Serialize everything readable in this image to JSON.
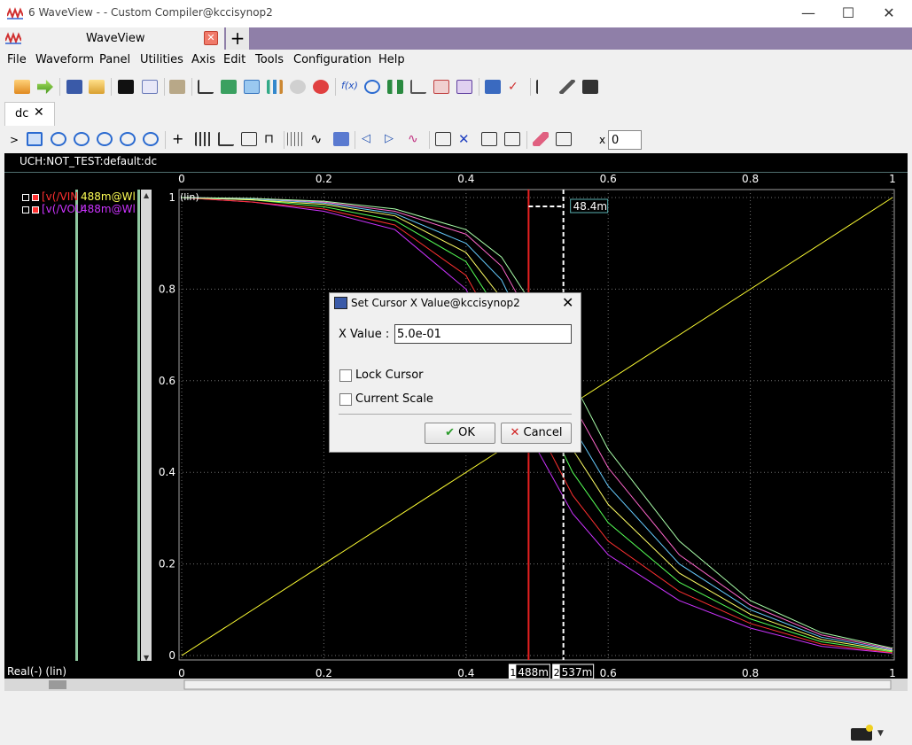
{
  "window": {
    "title": "6 WaveView -  - Custom Compiler@kccisynop2",
    "minimize": "—",
    "maximize": "☐",
    "close": "✕"
  },
  "app_tab": {
    "label": "WaveView",
    "close": "✕",
    "new_tab": "+"
  },
  "menu": [
    "File",
    "Waveform",
    "Panel",
    "Utilities",
    "Axis",
    "Edit",
    "Tools",
    "Configuration",
    "Help"
  ],
  "doc_tab": {
    "label": "dc",
    "close": "✕"
  },
  "toolbar2": {
    "expand": ">",
    "x_label": "x",
    "x_value": "0"
  },
  "plot": {
    "path": "UCH:NOT_TEST:default:dc",
    "x_axis_label": "Real(-) (lin)",
    "y_scale_label": "(lin)",
    "x_ticks": [
      "0",
      "0.2",
      "0.4",
      "0.6",
      "0.8",
      "1"
    ],
    "y_ticks": [
      "1",
      "0.8",
      "0.6",
      "0.4",
      "0.2",
      "0"
    ],
    "cursor1_label": "1",
    "cursor1_value": "488m",
    "cursor2_label": "2",
    "cursor2_value": "537m",
    "delta_label": "48.4m",
    "colors": {
      "background": "#000000",
      "vin": "#ffff33",
      "cursor1": "#e82020",
      "cursor2": "#ffffff"
    }
  },
  "legend": [
    {
      "name": "[v(/VIN",
      "value": "488m@Wl",
      "name_color": "#ff3030",
      "value_color": "#ffff55"
    },
    {
      "name": "[v(/VOU",
      "value": "488m@Wl",
      "name_color": "#cc33ff",
      "value_color": "#cc33ff"
    }
  ],
  "chart_data": {
    "type": "line",
    "xlim": [
      0,
      1
    ],
    "ylim": [
      0,
      1
    ],
    "grid": true,
    "series": [
      {
        "name": "[v(/VIN",
        "color": "#ffff33",
        "x": [
          0,
          1
        ],
        "y": [
          0,
          1
        ]
      },
      {
        "color": "#cc33ff",
        "x": [
          0,
          0.1,
          0.2,
          0.3,
          0.4,
          0.45,
          0.5,
          0.55,
          0.6,
          0.7,
          0.8,
          0.9,
          1.0
        ],
        "y": [
          1,
          0.99,
          0.97,
          0.93,
          0.8,
          0.64,
          0.45,
          0.31,
          0.22,
          0.12,
          0.06,
          0.02,
          0.005
        ]
      },
      {
        "color": "#ff3030",
        "x": [
          0,
          0.1,
          0.2,
          0.3,
          0.4,
          0.45,
          0.5,
          0.55,
          0.6,
          0.7,
          0.8,
          0.9,
          1.0
        ],
        "y": [
          1,
          0.99,
          0.975,
          0.94,
          0.83,
          0.69,
          0.5,
          0.35,
          0.25,
          0.14,
          0.07,
          0.025,
          0.006
        ]
      },
      {
        "color": "#55ff55",
        "x": [
          0,
          0.1,
          0.2,
          0.3,
          0.4,
          0.45,
          0.5,
          0.55,
          0.6,
          0.7,
          0.8,
          0.9,
          1.0
        ],
        "y": [
          1,
          0.995,
          0.98,
          0.95,
          0.86,
          0.74,
          0.56,
          0.4,
          0.29,
          0.16,
          0.08,
          0.03,
          0.008
        ]
      },
      {
        "color": "#ffff66",
        "x": [
          0,
          0.1,
          0.2,
          0.3,
          0.4,
          0.45,
          0.5,
          0.55,
          0.6,
          0.7,
          0.8,
          0.9,
          1.0
        ],
        "y": [
          1,
          0.995,
          0.985,
          0.96,
          0.88,
          0.78,
          0.61,
          0.45,
          0.33,
          0.18,
          0.09,
          0.035,
          0.01
        ]
      },
      {
        "color": "#66ccff",
        "x": [
          0,
          0.1,
          0.2,
          0.3,
          0.4,
          0.45,
          0.5,
          0.55,
          0.6,
          0.7,
          0.8,
          0.9,
          1.0
        ],
        "y": [
          1,
          0.997,
          0.988,
          0.965,
          0.9,
          0.82,
          0.66,
          0.5,
          0.37,
          0.2,
          0.1,
          0.04,
          0.012
        ]
      },
      {
        "color": "#ff66cc",
        "x": [
          0,
          0.1,
          0.2,
          0.3,
          0.4,
          0.45,
          0.5,
          0.55,
          0.6,
          0.7,
          0.8,
          0.9,
          1.0
        ],
        "y": [
          1,
          0.998,
          0.99,
          0.97,
          0.92,
          0.85,
          0.71,
          0.55,
          0.41,
          0.22,
          0.11,
          0.045,
          0.014
        ]
      },
      {
        "color": "#aaffaa",
        "x": [
          0,
          0.1,
          0.2,
          0.3,
          0.4,
          0.45,
          0.5,
          0.55,
          0.6,
          0.7,
          0.8,
          0.9,
          1.0
        ],
        "y": [
          1,
          0.998,
          0.992,
          0.975,
          0.93,
          0.87,
          0.75,
          0.6,
          0.45,
          0.25,
          0.12,
          0.05,
          0.016
        ]
      }
    ],
    "cursors": [
      0.488,
      0.537
    ]
  },
  "dialog": {
    "title": "Set Cursor X Value@kccisynop2",
    "close": "✕",
    "x_label": "X Value :",
    "x_value": "5.0e-01",
    "lock_cursor": "Lock Cursor",
    "current_scale": "Current Scale",
    "ok": "OK",
    "cancel": "Cancel"
  }
}
